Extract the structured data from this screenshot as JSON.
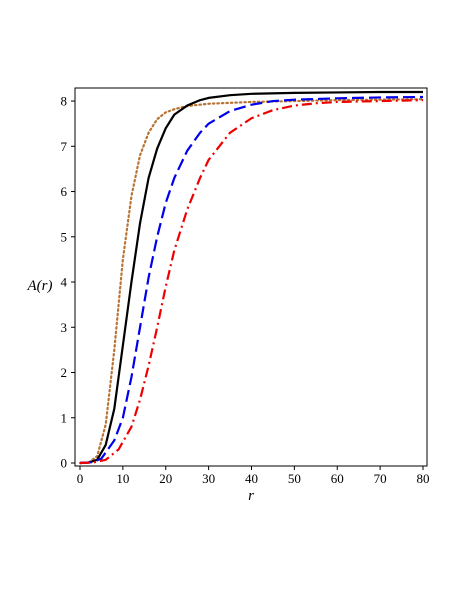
{
  "chart_data": {
    "type": "line",
    "title": "",
    "xlabel": "r",
    "ylabel": "A(r)",
    "xlim": [
      0,
      80
    ],
    "ylim": [
      0,
      8.2
    ],
    "xticks": [
      0,
      10,
      20,
      30,
      40,
      50,
      60,
      70,
      80
    ],
    "yticks": [
      0,
      1,
      2,
      3,
      4,
      5,
      6,
      7,
      8
    ],
    "grid": false,
    "legend": "none",
    "series": [
      {
        "color": "#b87333",
        "style": "dotted",
        "points": [
          [
            0,
            0
          ],
          [
            2,
            0.01
          ],
          [
            4,
            0.15
          ],
          [
            6,
            0.85
          ],
          [
            8,
            2.5
          ],
          [
            10,
            4.5
          ],
          [
            12,
            5.9
          ],
          [
            14,
            6.8
          ],
          [
            16,
            7.3
          ],
          [
            18,
            7.6
          ],
          [
            20,
            7.75
          ],
          [
            22,
            7.82
          ],
          [
            24,
            7.87
          ],
          [
            26,
            7.9
          ],
          [
            30,
            7.94
          ],
          [
            35,
            7.96
          ],
          [
            40,
            7.98
          ],
          [
            50,
            8.0
          ],
          [
            60,
            8.02
          ],
          [
            70,
            8.03
          ],
          [
            80,
            8.04
          ]
        ]
      },
      {
        "color": "#000000",
        "style": "solid",
        "points": [
          [
            0,
            0
          ],
          [
            2,
            0.01
          ],
          [
            4,
            0.07
          ],
          [
            6,
            0.4
          ],
          [
            8,
            1.2
          ],
          [
            10,
            2.6
          ],
          [
            12,
            4.0
          ],
          [
            14,
            5.3
          ],
          [
            16,
            6.3
          ],
          [
            18,
            6.95
          ],
          [
            20,
            7.4
          ],
          [
            22,
            7.7
          ],
          [
            25,
            7.9
          ],
          [
            28,
            8.02
          ],
          [
            30,
            8.07
          ],
          [
            35,
            8.13
          ],
          [
            40,
            8.16
          ],
          [
            50,
            8.18
          ],
          [
            60,
            8.19
          ],
          [
            70,
            8.2
          ],
          [
            80,
            8.2
          ]
        ]
      },
      {
        "color": "#0000ee",
        "style": "dashed",
        "points": [
          [
            0,
            0
          ],
          [
            3,
            0.02
          ],
          [
            5,
            0.1
          ],
          [
            8,
            0.5
          ],
          [
            10,
            1.0
          ],
          [
            12,
            1.9
          ],
          [
            14,
            3.0
          ],
          [
            16,
            4.1
          ],
          [
            18,
            5.0
          ],
          [
            20,
            5.75
          ],
          [
            22,
            6.3
          ],
          [
            25,
            6.9
          ],
          [
            28,
            7.3
          ],
          [
            30,
            7.5
          ],
          [
            35,
            7.78
          ],
          [
            40,
            7.92
          ],
          [
            45,
            8.0
          ],
          [
            50,
            8.03
          ],
          [
            60,
            8.06
          ],
          [
            70,
            8.08
          ],
          [
            80,
            8.09
          ]
        ]
      },
      {
        "color": "#ee0000",
        "style": "dashdot",
        "points": [
          [
            0,
            0
          ],
          [
            3,
            0.01
          ],
          [
            6,
            0.07
          ],
          [
            9,
            0.3
          ],
          [
            12,
            0.8
          ],
          [
            14,
            1.4
          ],
          [
            16,
            2.15
          ],
          [
            18,
            3.0
          ],
          [
            20,
            3.9
          ],
          [
            22,
            4.7
          ],
          [
            25,
            5.6
          ],
          [
            28,
            6.3
          ],
          [
            30,
            6.7
          ],
          [
            35,
            7.3
          ],
          [
            40,
            7.62
          ],
          [
            45,
            7.8
          ],
          [
            50,
            7.9
          ],
          [
            55,
            7.95
          ],
          [
            60,
            7.98
          ],
          [
            70,
            8.0
          ],
          [
            80,
            8.02
          ]
        ]
      }
    ]
  }
}
